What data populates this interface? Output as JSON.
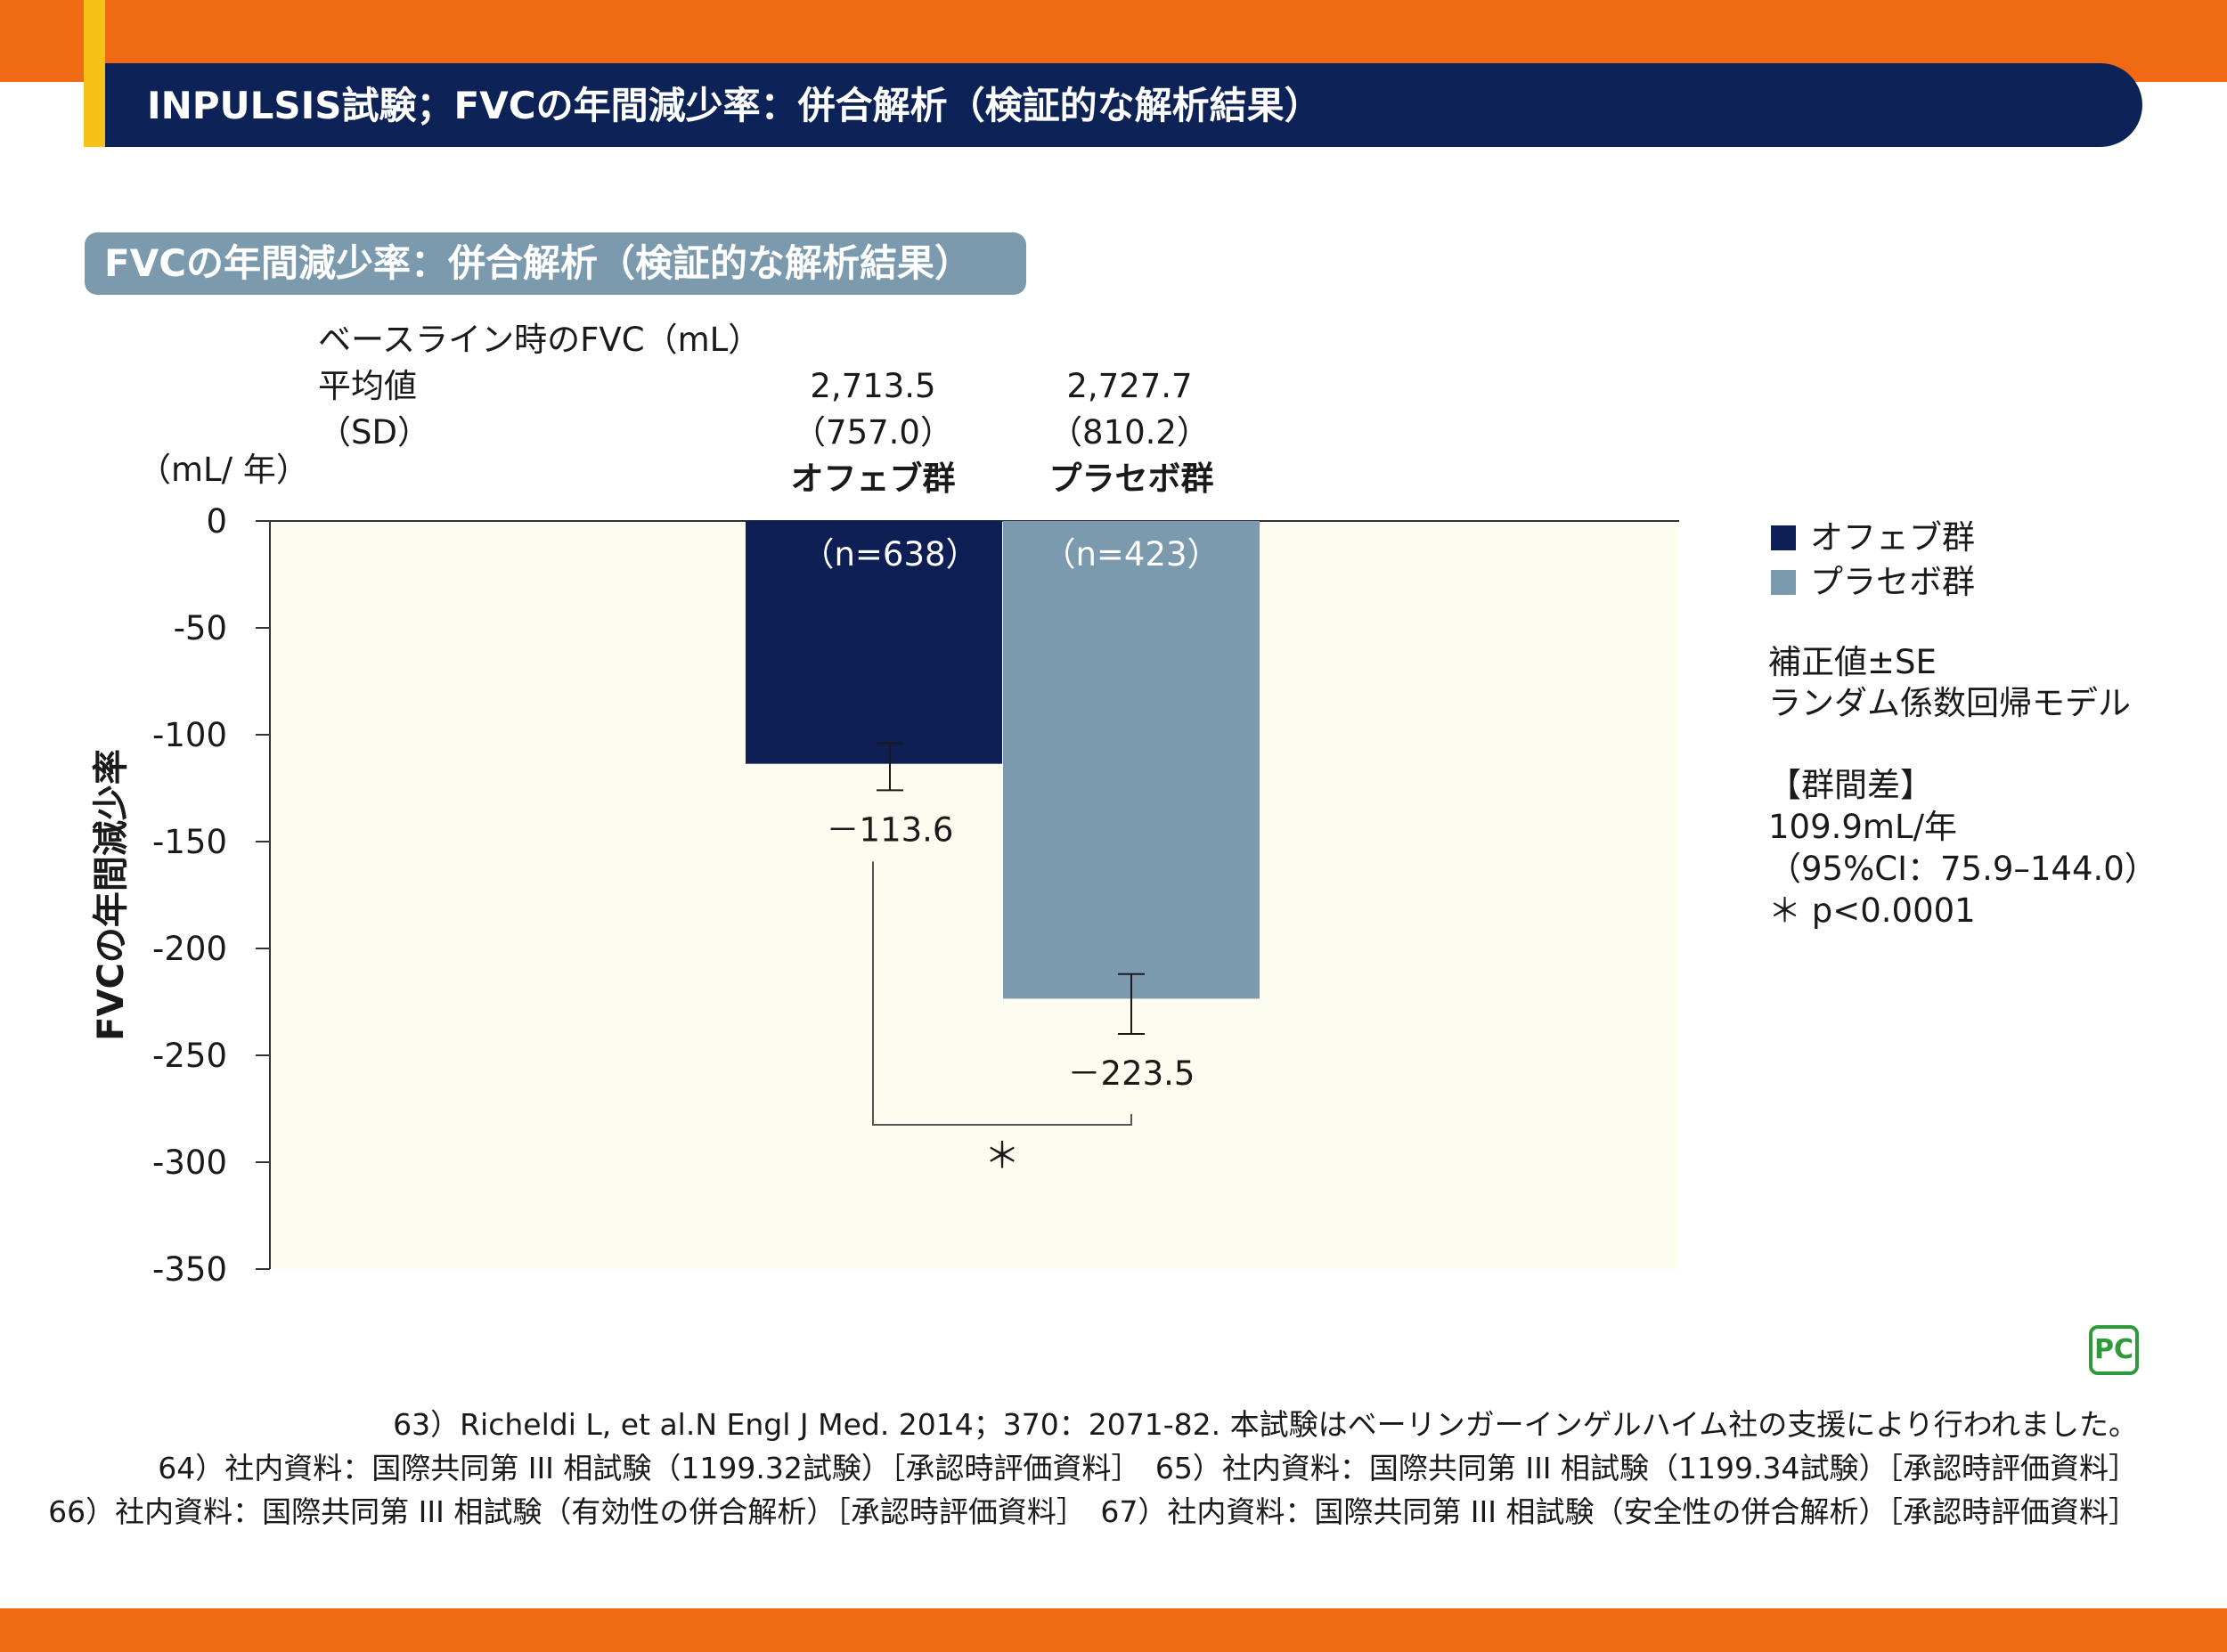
{
  "header": {
    "title": "INPULSIS試験；FVCの年間減少率：併合解析（検証的な解析結果）"
  },
  "subheader": {
    "label": "FVCの年間減少率：併合解析（検証的な解析結果）"
  },
  "baseline": {
    "line1": "ベースライン時のFVC（mL）",
    "line2": "平均値",
    "line3": "（SD）",
    "ofev_mean": "2,713.5",
    "ofev_sd": "（757.0）",
    "placebo_mean": "2,727.7",
    "placebo_sd": "（810.2）"
  },
  "legend": {
    "ofev": "オフェブ群",
    "placebo": "プラセボ群"
  },
  "notes": {
    "n1": "補正値±SE",
    "n2": "ランダム係数回帰モデル",
    "diff_title": "【群間差】",
    "diff_value": "109.9mL/年",
    "ci": "（95%CI：75.9–144.0）",
    "p": "＊ p<0.0001"
  },
  "chart_data": {
    "type": "bar",
    "ylabel": "FVCの年間減少率",
    "yunit": "（mL/ 年）",
    "ylim": [
      -350,
      0
    ],
    "yticks": [
      0,
      -50,
      -100,
      -150,
      -200,
      -250,
      -300,
      -350
    ],
    "categories": [
      "オフェブ群",
      "プラセボ群"
    ],
    "values": [
      -113.6,
      -223.5
    ],
    "error_lower": [
      -126,
      -240
    ],
    "error_upper": [
      -104,
      -212
    ],
    "n_labels": [
      "（n=638）",
      "（n=423）"
    ],
    "value_labels": [
      "－113.6",
      "－223.5"
    ],
    "colors": [
      "#0d1f55",
      "#7b9aae"
    ],
    "significance_marker": "＊",
    "grid": false
  },
  "logo": {
    "text": "PC"
  },
  "references": {
    "line1": "63）Richeldi L, et al.N Engl J Med. 2014；370：2071-82. 本試験はベーリンガーインゲルハイム社の支援により行われました。",
    "line2": "64）社内資料：国際共同第 III 相試験（1199.32試験）［承認時評価資料］　65）社内資料：国際共同第 III 相試験（1199.34試験）［承認時評価資料］",
    "line3": "66）社内資料：国際共同第 III 相試験（有効性の併合解析）［承認時評価資料］　67）社内資料：国際共同第 III 相試験（安全性の併合解析）［承認時評価資料］"
  }
}
